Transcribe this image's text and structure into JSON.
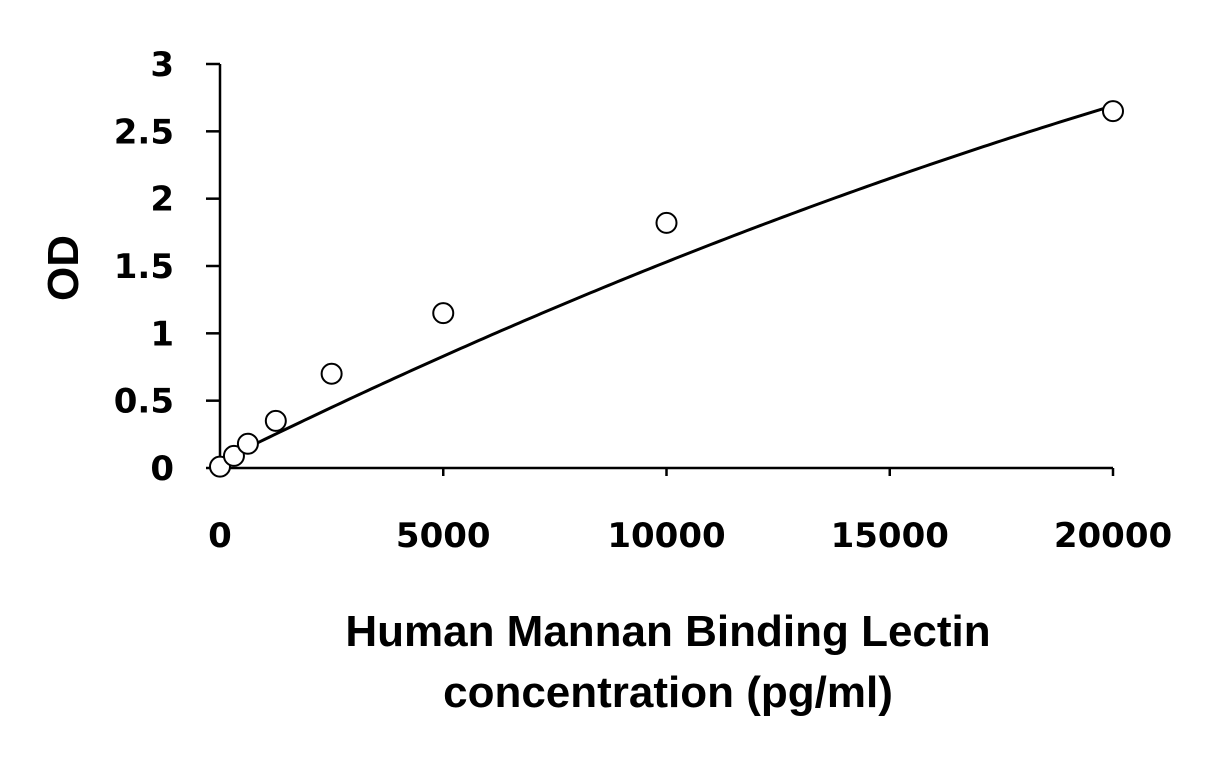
{
  "chart_data": {
    "type": "scatter",
    "title": "",
    "xlabel_lines": [
      "Human Mannan Binding Lectin",
      "concentration (pg/ml)"
    ],
    "ylabel": "OD",
    "xlim": [
      0,
      20000
    ],
    "ylim": [
      0,
      3
    ],
    "x_ticks": [
      {
        "value": 0,
        "label": "0"
      },
      {
        "value": 5000,
        "label": "5000"
      },
      {
        "value": 10000,
        "label": "10000"
      },
      {
        "value": 15000,
        "label": "15000"
      },
      {
        "value": 20000,
        "label": "20000"
      }
    ],
    "y_ticks": [
      {
        "value": 0,
        "label": "0"
      },
      {
        "value": 0.5,
        "label": "0.5"
      },
      {
        "value": 1,
        "label": "1"
      },
      {
        "value": 1.5,
        "label": "1.5"
      },
      {
        "value": 2,
        "label": "2"
      },
      {
        "value": 2.5,
        "label": "2.5"
      },
      {
        "value": 3,
        "label": "3"
      }
    ],
    "grid": false,
    "legend": "none",
    "series": [
      {
        "marker": "open-circle",
        "x": [
          0,
          312.5,
          625,
          1250,
          2500,
          5000,
          10000,
          20000
        ],
        "y": [
          0.01,
          0.09,
          0.18,
          0.35,
          0.7,
          1.15,
          1.82,
          2.65
        ]
      }
    ],
    "fit_curve": {
      "type": "polynomial",
      "coefficients": [
        0.05,
        0.000164,
        -1.6e-09
      ]
    },
    "colors": {
      "axis": "#000000",
      "marker_fill": "#ffffff",
      "curve": "#000000"
    }
  }
}
